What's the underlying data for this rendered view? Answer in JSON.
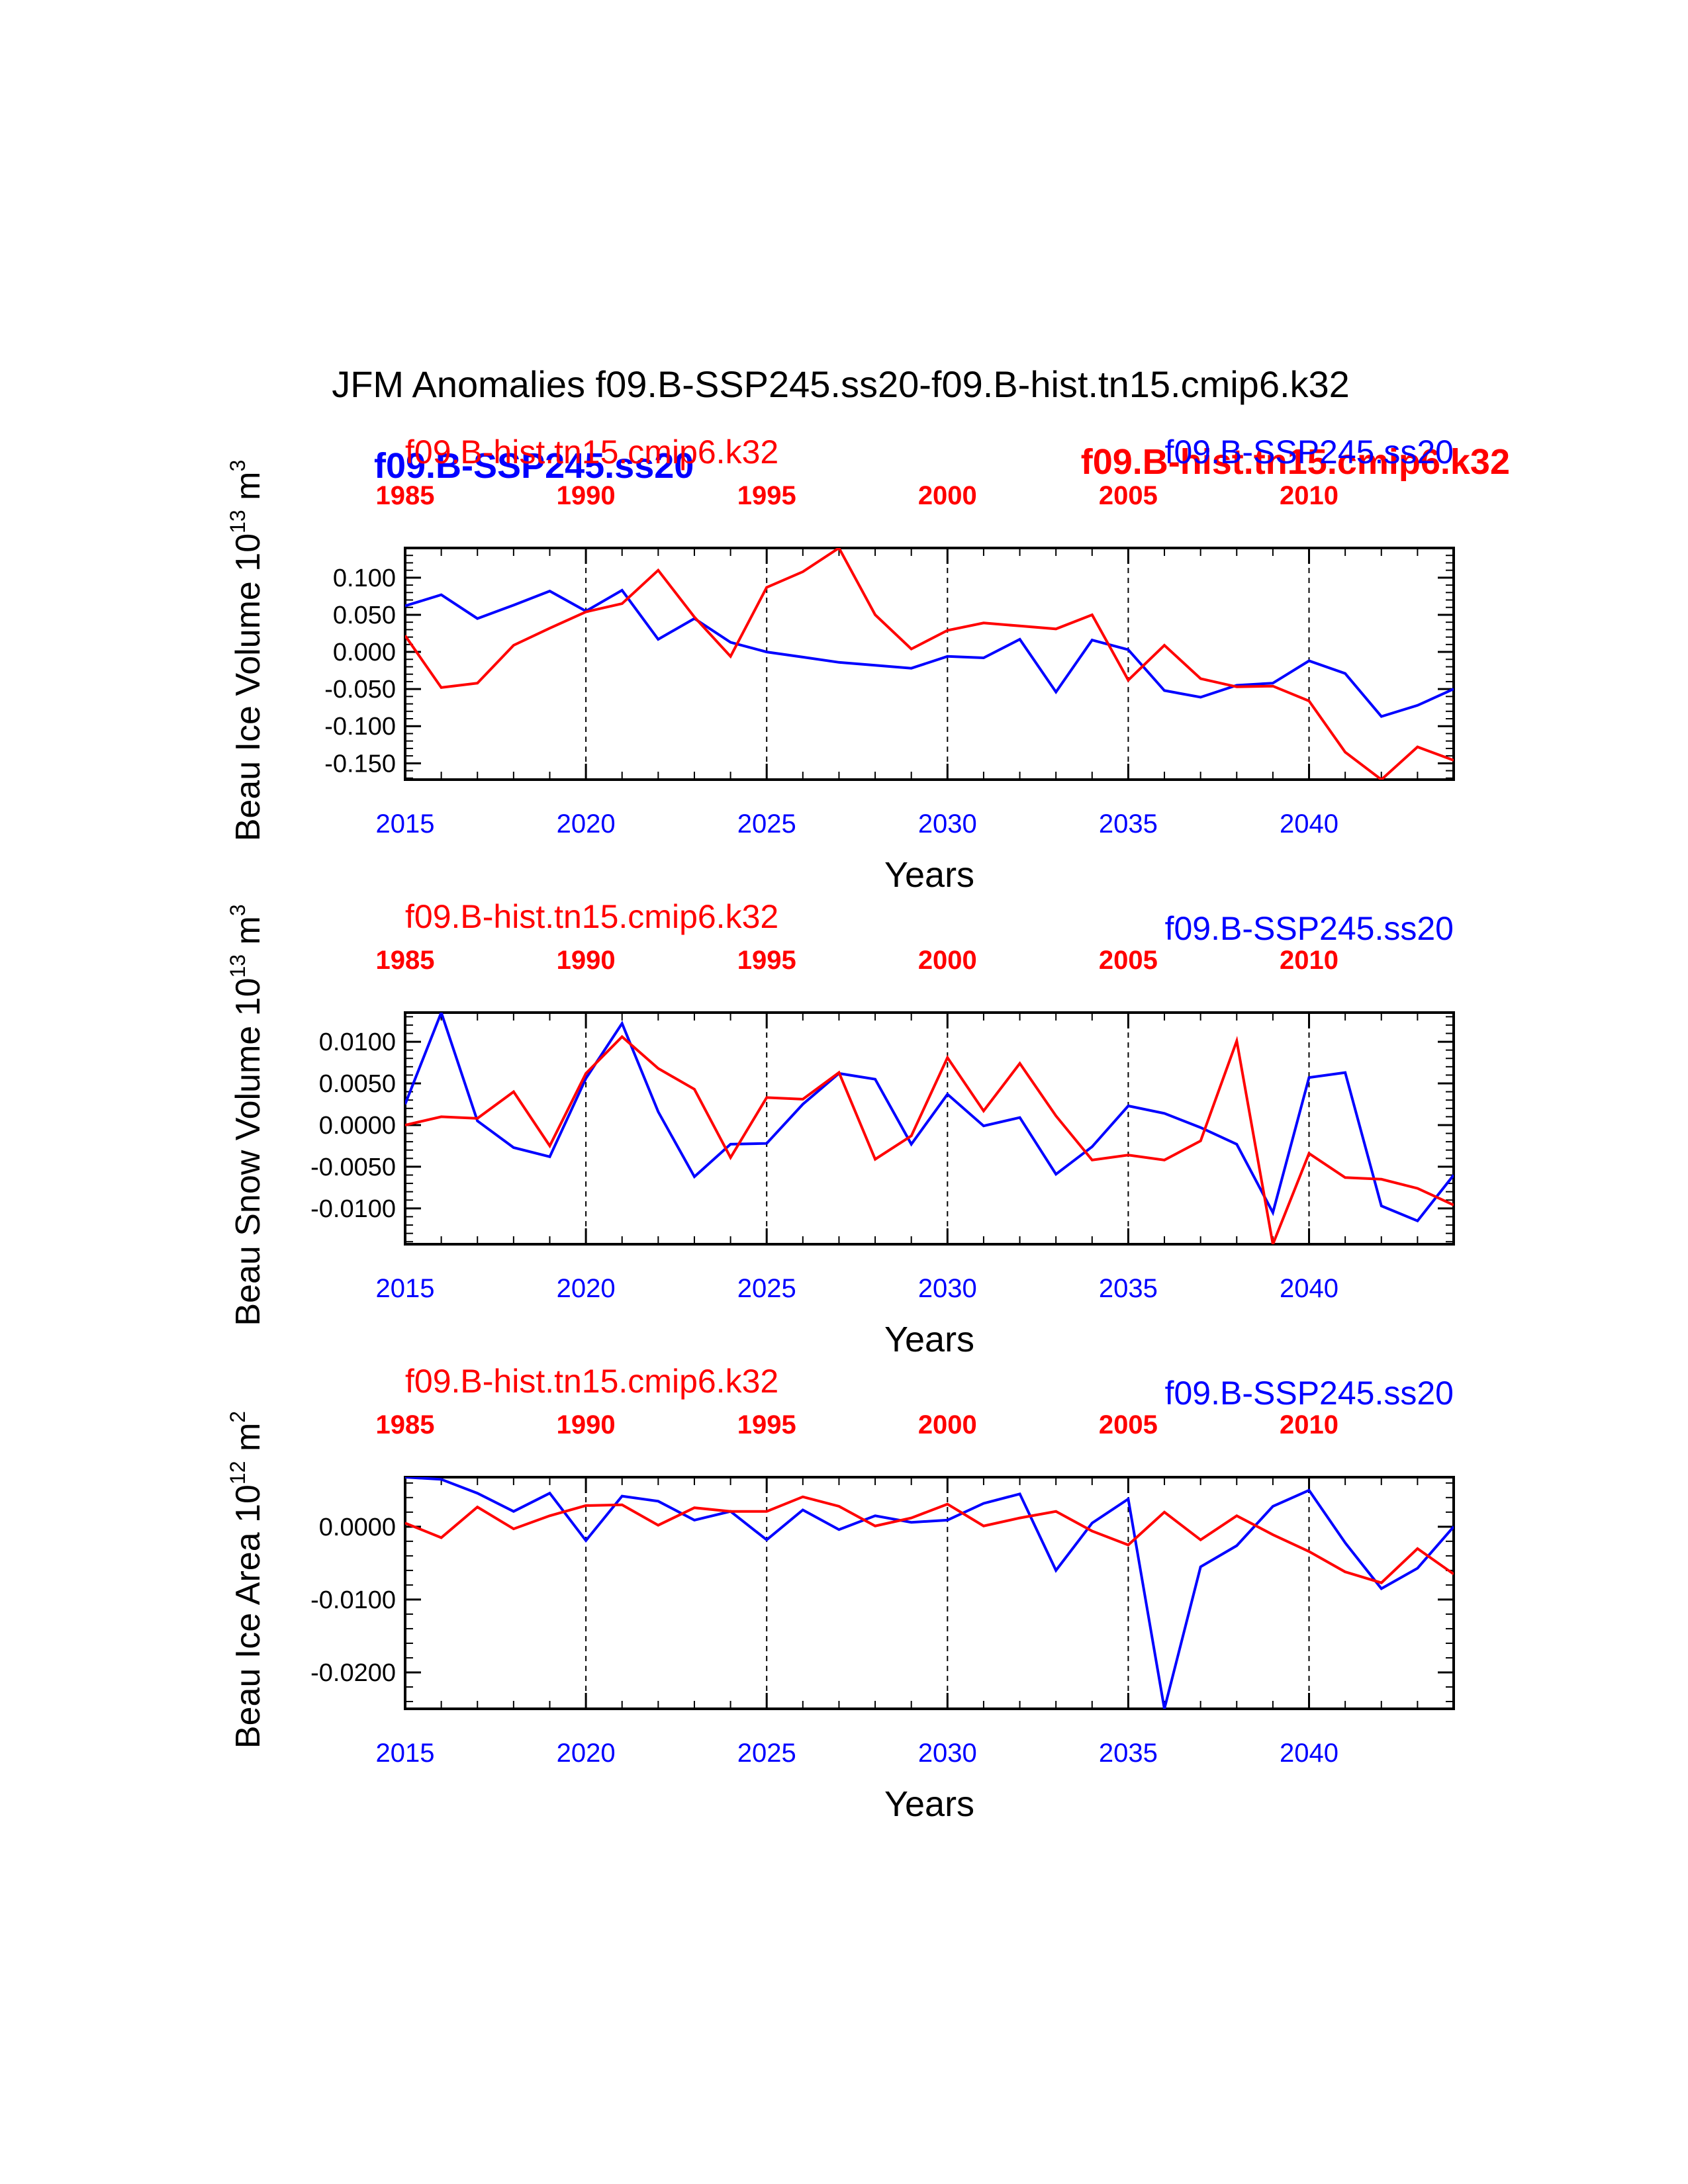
{
  "title": "JFM Anomalies f09.B-SSP245.ss20-f09.B-hist.tn15.cmip6.k32",
  "colors": {
    "ssp": "#0000ff",
    "hist": "#ff0000",
    "axis": "#000000"
  },
  "top_legend": {
    "ssp_bold": "f09.B-SSP245.ss20",
    "hist_bold": "f09.B-hist.tn15.cmip6.k32"
  },
  "chart_data": [
    {
      "type": "line",
      "ylabel": "Beau Ice Volume 10",
      "ylabel_exp": "13",
      "ylabel_unit": " m",
      "ylabel_unit_exp": "3",
      "xlabel": "Years",
      "hist_label": "f09.B-hist.tn15.cmip6.k32",
      "ssp_label": "f09.B-SSP245.ss20",
      "bottom_ticks": [
        "2015",
        "2020",
        "2025",
        "2030",
        "2035",
        "2040"
      ],
      "top_ticks": [
        "1985",
        "1990",
        "1995",
        "2000",
        "2005",
        "2010"
      ],
      "xlim": [
        2015,
        2044
      ],
      "ylim": [
        -0.172,
        0.14
      ],
      "yticks": [
        "0.100",
        "0.050",
        "0.000",
        "-0.050",
        "-0.100",
        "-0.150"
      ],
      "ytick_values": [
        0.1,
        0.05,
        0.0,
        -0.05,
        -0.1,
        -0.15
      ],
      "minor_step": 0.01,
      "series": [
        {
          "name": "f09.B-SSP245.ss20",
          "x": [
            2015,
            2016,
            2017,
            2018,
            2019,
            2020,
            2021,
            2022,
            2023,
            2024,
            2025,
            2026,
            2027,
            2028,
            2029,
            2030,
            2031,
            2032,
            2033,
            2034,
            2035,
            2036,
            2037,
            2038,
            2039,
            2040,
            2041,
            2042,
            2043,
            2044
          ],
          "values": [
            0.062,
            0.077,
            0.045,
            0.063,
            0.082,
            0.055,
            0.083,
            0.017,
            0.045,
            0.013,
            0.0,
            -0.007,
            -0.014,
            -0.018,
            -0.022,
            -0.006,
            -0.008,
            0.017,
            -0.054,
            0.016,
            0.003,
            -0.052,
            -0.061,
            -0.045,
            -0.042,
            -0.012,
            -0.029,
            -0.087,
            -0.072,
            -0.05
          ]
        },
        {
          "name": "f09.B-hist.tn15.cmip6.k32",
          "x": [
            2015,
            2016,
            2017,
            2018,
            2019,
            2020,
            2021,
            2022,
            2023,
            2024,
            2025,
            2026,
            2027,
            2028,
            2029,
            2030,
            2031,
            2032,
            2033,
            2034,
            2035,
            2036,
            2037,
            2038,
            2039,
            2040,
            2041,
            2042,
            2043,
            2044
          ],
          "values": [
            0.022,
            -0.048,
            -0.042,
            0.009,
            0.032,
            0.054,
            0.065,
            0.11,
            0.047,
            -0.006,
            0.087,
            0.108,
            0.14,
            0.05,
            0.004,
            0.029,
            0.039,
            0.035,
            0.031,
            0.05,
            -0.038,
            0.009,
            -0.036,
            -0.047,
            -0.046,
            -0.066,
            -0.135,
            -0.172,
            -0.128,
            -0.146
          ]
        }
      ]
    },
    {
      "type": "line",
      "ylabel": "Beau Snow Volume 10",
      "ylabel_exp": "13",
      "ylabel_unit": " m",
      "ylabel_unit_exp": "3",
      "xlabel": "Years",
      "hist_label": "f09.B-hist.tn15.cmip6.k32",
      "ssp_label": "f09.B-SSP245.ss20",
      "bottom_ticks": [
        "2015",
        "2020",
        "2025",
        "2030",
        "2035",
        "2040"
      ],
      "top_ticks": [
        "1985",
        "1990",
        "1995",
        "2000",
        "2005",
        "2010"
      ],
      "xlim": [
        2015,
        2044
      ],
      "ylim": [
        -0.0143,
        0.0135
      ],
      "yticks": [
        "0.0100",
        "0.0050",
        "0.0000",
        "-0.0050",
        "-0.0100"
      ],
      "ytick_values": [
        0.01,
        0.005,
        0.0,
        -0.005,
        -0.01
      ],
      "minor_step": 0.001,
      "series": [
        {
          "name": "f09.B-SSP245.ss20",
          "x": [
            2015,
            2016,
            2017,
            2018,
            2019,
            2020,
            2021,
            2022,
            2023,
            2024,
            2025,
            2026,
            2027,
            2028,
            2029,
            2030,
            2031,
            2032,
            2033,
            2034,
            2035,
            2036,
            2037,
            2038,
            2039,
            2040,
            2041,
            2042,
            2043,
            2044
          ],
          "values": [
            0.0025,
            0.0135,
            0.0005,
            -0.0027,
            -0.0038,
            0.0056,
            0.0122,
            0.0016,
            -0.0062,
            -0.0023,
            -0.0022,
            0.0025,
            0.0062,
            0.0055,
            -0.0023,
            0.0037,
            -0.0001,
            0.0009,
            -0.0059,
            -0.0026,
            0.0023,
            0.0014,
            -0.0003,
            -0.0023,
            -0.0105,
            0.0057,
            0.0063,
            -0.0097,
            -0.0115,
            -0.006
          ]
        },
        {
          "name": "f09.B-hist.tn15.cmip6.k32",
          "x": [
            2015,
            2016,
            2017,
            2018,
            2019,
            2020,
            2021,
            2022,
            2023,
            2024,
            2025,
            2026,
            2027,
            2028,
            2029,
            2030,
            2031,
            2032,
            2033,
            2034,
            2035,
            2036,
            2037,
            2038,
            2039,
            2040,
            2041,
            2042,
            2043,
            2044
          ],
          "values": [
            0.0,
            0.001,
            0.0008,
            0.004,
            -0.0025,
            0.0062,
            0.0106,
            0.0068,
            0.0043,
            -0.0039,
            0.0033,
            0.0031,
            0.0063,
            -0.0041,
            -0.0013,
            0.0081,
            0.0017,
            0.0074,
            0.0011,
            -0.0042,
            -0.0036,
            -0.0042,
            -0.0019,
            0.0101,
            -0.0143,
            -0.0034,
            -0.0063,
            -0.0065,
            -0.0076,
            -0.0096
          ]
        }
      ]
    },
    {
      "type": "line",
      "ylabel": "Beau Ice Area 10",
      "ylabel_exp": "12",
      "ylabel_unit": " m",
      "ylabel_unit_exp": "2",
      "xlabel": "Years",
      "hist_label": "f09.B-hist.tn15.cmip6.k32",
      "ssp_label": "f09.B-SSP245.ss20",
      "bottom_ticks": [
        "2015",
        "2020",
        "2025",
        "2030",
        "2035",
        "2040"
      ],
      "top_ticks": [
        "1985",
        "1990",
        "1995",
        "2000",
        "2005",
        "2010"
      ],
      "xlim": [
        2015,
        2044
      ],
      "ylim": [
        -0.025,
        0.0068
      ],
      "yticks": [
        "0.0000",
        "-0.0100",
        "-0.0200"
      ],
      "ytick_values": [
        0.0,
        -0.01,
        -0.02
      ],
      "minor_step": 0.002,
      "series": [
        {
          "name": "f09.B-SSP245.ss20",
          "x": [
            2015,
            2016,
            2017,
            2018,
            2019,
            2020,
            2021,
            2022,
            2023,
            2024,
            2025,
            2026,
            2027,
            2028,
            2029,
            2030,
            2031,
            2032,
            2033,
            2034,
            2035,
            2036,
            2037,
            2038,
            2039,
            2040,
            2041,
            2042,
            2043,
            2044
          ],
          "values": [
            0.0068,
            0.0065,
            0.0046,
            0.0021,
            0.0046,
            -0.0019,
            0.0042,
            0.0035,
            0.0009,
            0.0021,
            -0.0018,
            0.0023,
            -0.0004,
            0.0015,
            0.0006,
            0.0009,
            0.0032,
            0.0045,
            -0.006,
            0.0005,
            0.0038,
            -0.025,
            -0.0055,
            -0.0026,
            0.0028,
            0.005,
            -0.0022,
            -0.0085,
            -0.0057,
            0.0
          ]
        },
        {
          "name": "f09.B-hist.tn15.cmip6.k32",
          "x": [
            2015,
            2016,
            2017,
            2018,
            2019,
            2020,
            2021,
            2022,
            2023,
            2024,
            2025,
            2026,
            2027,
            2028,
            2029,
            2030,
            2031,
            2032,
            2033,
            2034,
            2035,
            2036,
            2037,
            2038,
            2039,
            2040,
            2041,
            2042,
            2043,
            2044
          ],
          "values": [
            0.0005,
            -0.0015,
            0.0027,
            -0.0003,
            0.0015,
            0.0029,
            0.003,
            0.0002,
            0.0026,
            0.0021,
            0.0021,
            0.0041,
            0.0028,
            0.0001,
            0.0012,
            0.0031,
            0.0001,
            0.0012,
            0.0021,
            -0.0006,
            -0.0025,
            0.002,
            -0.0018,
            0.0015,
            -0.0011,
            -0.0034,
            -0.0062,
            -0.0077,
            -0.003,
            -0.0065
          ]
        }
      ]
    }
  ]
}
